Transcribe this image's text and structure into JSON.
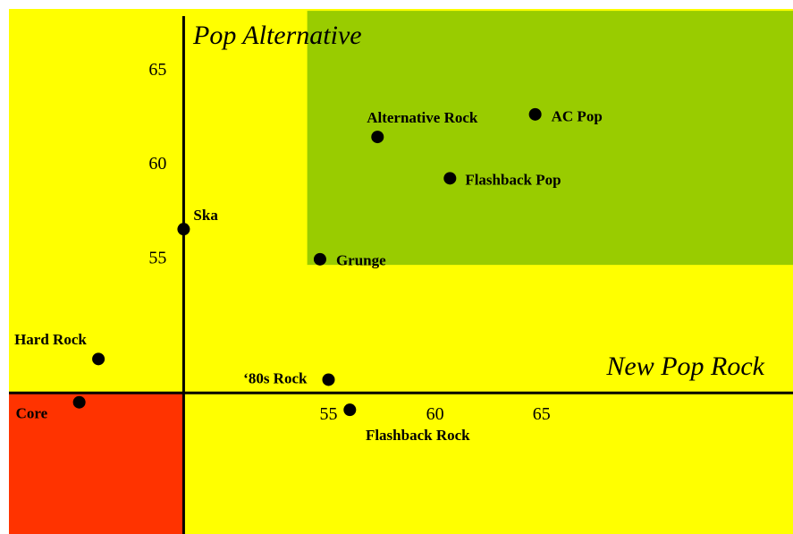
{
  "chart_data": {
    "type": "scatter",
    "xlabel": "New Pop Rock",
    "ylabel": "Pop Alternative",
    "background": "#ffff00",
    "regions": [
      {
        "xlim": [
          54.0,
          76.8
        ],
        "ylim": [
          54.7,
          68.2
        ],
        "color": "#99cc00"
      },
      {
        "xlim": [
          40,
          48.2
        ],
        "ylim": [
          40.4,
          47.9
        ],
        "color": "#ff3300"
      }
    ],
    "axis_cross": {
      "x": 48.2,
      "y": 47.9
    },
    "xlim": [
      40,
      76.8
    ],
    "ylim": [
      40.4,
      68.3
    ],
    "xticks": [
      55,
      60,
      65
    ],
    "yticks": [
      55,
      60,
      65
    ],
    "color": "#000000",
    "labels": [
      "Ska",
      "Hard Rock",
      "Core",
      "‘80s Rock",
      "Flashback Rock",
      "Grunge",
      "Alternative Rock",
      "Flashback Pop",
      "AC Pop"
    ],
    "x": [
      48.2,
      44.2,
      43.3,
      55.0,
      56.0,
      54.6,
      57.3,
      60.7,
      64.7
    ],
    "values": [
      56.6,
      49.7,
      47.4,
      48.6,
      47.0,
      55.0,
      61.5,
      59.3,
      62.7
    ]
  }
}
